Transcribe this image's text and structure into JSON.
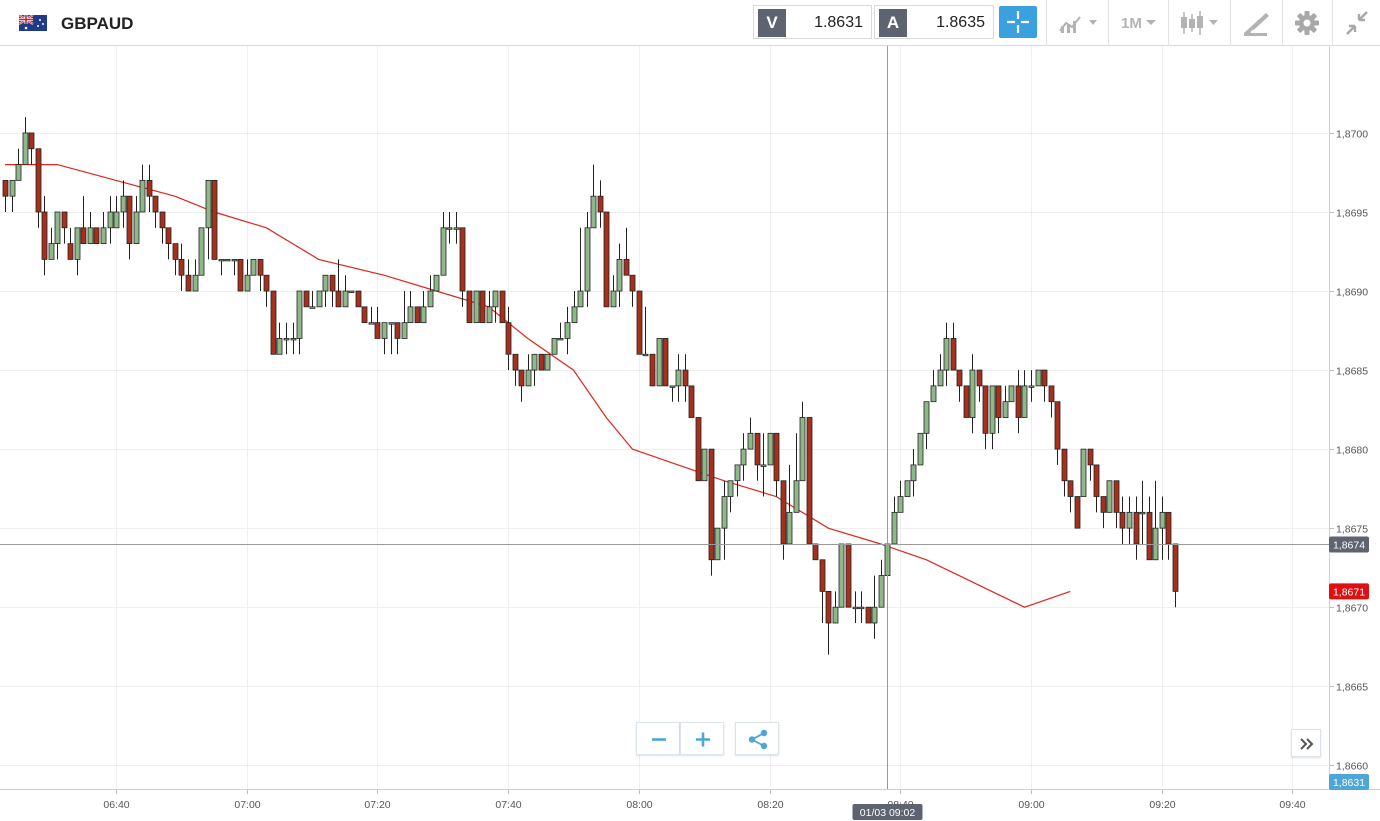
{
  "instrument": {
    "symbol": "GBPAUD",
    "flag_icon": "uk-australia-flag-icon"
  },
  "prices": {
    "sell_label": "V",
    "sell_value": "1.8631",
    "buy_label": "A",
    "buy_value": "1.8635"
  },
  "toolbar": {
    "crosshair_icon": "crosshair-icon",
    "indicators_icon": "indicators-chart-icon",
    "timeframe_label": "1M",
    "chart_type_icon": "candlestick-icon",
    "drawing_icon": "pencil-ruler-icon",
    "settings_icon": "gear-icon",
    "collapse_icon": "collapse-arrows-icon"
  },
  "colors": {
    "bull": "#8fb88a",
    "bear": "#a6301c",
    "ma_line": "#e0261b",
    "accent": "#3aa0e0",
    "last_price_tag": "#e01010",
    "bid_tag": "#4ea6d8",
    "crosshair_tag": "#5e6370"
  },
  "chart_data": {
    "type": "candlestick",
    "timeframe": "1M",
    "x_ticks": [
      "06:40",
      "07:00",
      "07:20",
      "07:40",
      "08:00",
      "08:20",
      "08:40",
      "09:00",
      "09:20",
      "09:40"
    ],
    "y_ticks": [
      "1,8700",
      "1,8695",
      "1,8690",
      "1,8685",
      "1,8680",
      "1,8675",
      "1,8670",
      "1,8665",
      "1,8660"
    ],
    "ylim": [
      1.86585,
      1.87055
    ],
    "grid": true,
    "moving_average_points": [
      [
        0,
        1.8698
      ],
      [
        8,
        1.8698
      ],
      [
        17,
        1.8697
      ],
      [
        26,
        1.8696
      ],
      [
        32,
        1.8695
      ],
      [
        40,
        1.8694
      ],
      [
        48,
        1.8692
      ],
      [
        58,
        1.8691
      ],
      [
        66,
        1.869
      ],
      [
        74,
        1.8689
      ],
      [
        80,
        1.8687
      ],
      [
        87,
        1.8685
      ],
      [
        92,
        1.8682
      ],
      [
        96,
        1.868
      ],
      [
        103,
        1.8679
      ],
      [
        110,
        1.8678
      ],
      [
        118,
        1.8677
      ],
      [
        126,
        1.8675
      ],
      [
        134,
        1.8674
      ],
      [
        141,
        1.8673
      ],
      [
        146,
        1.8672
      ],
      [
        151,
        1.8671
      ],
      [
        156,
        1.867
      ],
      [
        163,
        1.8671
      ]
    ],
    "candles": [
      [
        1.8697,
        1.8696,
        1.8697,
        1.8695
      ],
      [
        1.8696,
        1.8697,
        1.8697,
        1.8695
      ],
      [
        1.8697,
        1.8698,
        1.8699,
        1.8697
      ],
      [
        1.8698,
        1.87,
        1.8701,
        1.8698
      ],
      [
        1.87,
        1.8699,
        1.87,
        1.8698
      ],
      [
        1.8699,
        1.8695,
        1.8699,
        1.8694
      ],
      [
        1.8695,
        1.8692,
        1.8696,
        1.8691
      ],
      [
        1.8692,
        1.8693,
        1.8694,
        1.8692
      ],
      [
        1.8693,
        1.8695,
        1.8695,
        1.8692
      ],
      [
        1.8695,
        1.8694,
        1.8695,
        1.8693
      ],
      [
        1.8693,
        1.8692,
        1.8694,
        1.8692
      ],
      [
        1.8692,
        1.8694,
        1.8694,
        1.8691
      ],
      [
        1.8694,
        1.8693,
        1.8696,
        1.8693
      ],
      [
        1.8693,
        1.8694,
        1.8695,
        1.8693
      ],
      [
        1.8694,
        1.8693,
        1.8694,
        1.8693
      ],
      [
        1.8693,
        1.8694,
        1.8695,
        1.8693
      ],
      [
        1.8694,
        1.8695,
        1.8696,
        1.8693
      ],
      [
        1.8694,
        1.8695,
        1.8696,
        1.8694
      ],
      [
        1.8695,
        1.8696,
        1.8697,
        1.8694
      ],
      [
        1.8696,
        1.8693,
        1.8696,
        1.8692
      ],
      [
        1.8693,
        1.8695,
        1.8696,
        1.8693
      ],
      [
        1.8695,
        1.8697,
        1.8698,
        1.8695
      ],
      [
        1.8697,
        1.8696,
        1.8698,
        1.8695
      ],
      [
        1.8696,
        1.8695,
        1.8696,
        1.8694
      ],
      [
        1.8695,
        1.8694,
        1.8695,
        1.8693
      ],
      [
        1.8694,
        1.8693,
        1.8694,
        1.8692
      ],
      [
        1.8693,
        1.8692,
        1.8693,
        1.8691
      ],
      [
        1.8692,
        1.8691,
        1.8693,
        1.869
      ],
      [
        1.8691,
        1.869,
        1.8692,
        1.869
      ],
      [
        1.869,
        1.8691,
        1.8692,
        1.869
      ],
      [
        1.8691,
        1.8694,
        1.8694,
        1.8691
      ],
      [
        1.8694,
        1.8697,
        1.8697,
        1.8692
      ],
      [
        1.8697,
        1.8692,
        1.8697,
        1.8692
      ],
      [
        1.8692,
        1.8692,
        1.8692,
        1.8691
      ],
      [
        1.8692,
        1.8692,
        1.8692,
        1.8692
      ],
      [
        1.8692,
        1.8692,
        1.8692,
        1.8691
      ],
      [
        1.8692,
        1.869,
        1.8692,
        1.869
      ],
      [
        1.869,
        1.8691,
        1.8692,
        1.869
      ],
      [
        1.8691,
        1.8692,
        1.8692,
        1.8691
      ],
      [
        1.8692,
        1.8691,
        1.8692,
        1.869
      ],
      [
        1.8691,
        1.869,
        1.8691,
        1.8689
      ],
      [
        1.869,
        1.8686,
        1.869,
        1.8686
      ],
      [
        1.8686,
        1.8687,
        1.8688,
        1.8686
      ],
      [
        1.8687,
        1.8687,
        1.8688,
        1.8686
      ],
      [
        1.8687,
        1.8687,
        1.8688,
        1.8686
      ],
      [
        1.8687,
        1.869,
        1.869,
        1.8686
      ],
      [
        1.869,
        1.8689,
        1.869,
        1.8689
      ],
      [
        1.8689,
        1.8689,
        1.869,
        1.8689
      ],
      [
        1.8689,
        1.869,
        1.869,
        1.8689
      ],
      [
        1.869,
        1.8691,
        1.8691,
        1.8689
      ],
      [
        1.8691,
        1.869,
        1.8691,
        1.8689
      ],
      [
        1.869,
        1.8689,
        1.8692,
        1.8689
      ],
      [
        1.8689,
        1.869,
        1.8691,
        1.8689
      ],
      [
        1.869,
        1.869,
        1.869,
        1.869
      ],
      [
        1.869,
        1.8689,
        1.869,
        1.8689
      ],
      [
        1.8689,
        1.8688,
        1.8689,
        1.8688
      ],
      [
        1.8688,
        1.8688,
        1.8689,
        1.8688
      ],
      [
        1.8688,
        1.8687,
        1.8689,
        1.8687
      ],
      [
        1.8687,
        1.8688,
        1.8688,
        1.8686
      ],
      [
        1.8688,
        1.8688,
        1.8688,
        1.8686
      ],
      [
        1.8688,
        1.8687,
        1.8688,
        1.8686
      ],
      [
        1.8687,
        1.8688,
        1.869,
        1.8687
      ],
      [
        1.8688,
        1.8689,
        1.869,
        1.8688
      ],
      [
        1.8689,
        1.8688,
        1.8689,
        1.8688
      ],
      [
        1.8688,
        1.8689,
        1.869,
        1.8688
      ],
      [
        1.8689,
        1.869,
        1.8691,
        1.8689
      ],
      [
        1.869,
        1.8691,
        1.8691,
        1.869
      ],
      [
        1.8691,
        1.8694,
        1.8695,
        1.8691
      ],
      [
        1.8694,
        1.8694,
        1.8695,
        1.8693
      ],
      [
        1.8694,
        1.8694,
        1.8695,
        1.8693
      ],
      [
        1.8694,
        1.869,
        1.8694,
        1.8689
      ],
      [
        1.869,
        1.8688,
        1.869,
        1.8688
      ],
      [
        1.8688,
        1.869,
        1.869,
        1.8688
      ],
      [
        1.869,
        1.8688,
        1.869,
        1.8688
      ],
      [
        1.8688,
        1.8689,
        1.869,
        1.8688
      ],
      [
        1.8689,
        1.869,
        1.869,
        1.8688
      ],
      [
        1.869,
        1.8688,
        1.869,
        1.8688
      ],
      [
        1.8688,
        1.8686,
        1.8689,
        1.8685
      ],
      [
        1.8686,
        1.8685,
        1.8686,
        1.8684
      ],
      [
        1.8685,
        1.8684,
        1.8685,
        1.8683
      ],
      [
        1.8684,
        1.8685,
        1.8686,
        1.8684
      ],
      [
        1.8685,
        1.8686,
        1.8686,
        1.8684
      ],
      [
        1.8686,
        1.8685,
        1.8686,
        1.8685
      ],
      [
        1.8685,
        1.8686,
        1.8686,
        1.8685
      ],
      [
        1.8686,
        1.8687,
        1.8687,
        1.8686
      ],
      [
        1.8687,
        1.8687,
        1.8688,
        1.8687
      ],
      [
        1.8687,
        1.8688,
        1.8689,
        1.8686
      ],
      [
        1.8688,
        1.8689,
        1.869,
        1.8688
      ],
      [
        1.8689,
        1.869,
        1.8694,
        1.8689
      ],
      [
        1.869,
        1.8694,
        1.8695,
        1.8689
      ],
      [
        1.8694,
        1.8696,
        1.8698,
        1.8694
      ],
      [
        1.8696,
        1.8695,
        1.8697,
        1.8694
      ],
      [
        1.8695,
        1.8689,
        1.8695,
        1.8689
      ],
      [
        1.8689,
        1.869,
        1.8691,
        1.8689
      ],
      [
        1.869,
        1.8692,
        1.8693,
        1.8689
      ],
      [
        1.8692,
        1.8691,
        1.8694,
        1.8691
      ],
      [
        1.8691,
        1.869,
        1.8691,
        1.8689
      ],
      [
        1.869,
        1.8686,
        1.869,
        1.8686
      ],
      [
        1.8686,
        1.8686,
        1.8689,
        1.8686
      ],
      [
        1.8686,
        1.8684,
        1.8686,
        1.8684
      ],
      [
        1.8684,
        1.8687,
        1.8687,
        1.8684
      ],
      [
        1.8687,
        1.8684,
        1.8687,
        1.8684
      ],
      [
        1.8684,
        1.8684,
        1.8684,
        1.8683
      ],
      [
        1.8684,
        1.8685,
        1.8686,
        1.8683
      ],
      [
        1.8685,
        1.8684,
        1.8686,
        1.8683
      ],
      [
        1.8684,
        1.8682,
        1.8684,
        1.8682
      ],
      [
        1.8682,
        1.8678,
        1.8682,
        1.8678
      ],
      [
        1.8678,
        1.868,
        1.868,
        1.8678
      ],
      [
        1.868,
        1.8673,
        1.868,
        1.8672
      ],
      [
        1.8673,
        1.8675,
        1.8675,
        1.8673
      ],
      [
        1.8675,
        1.8677,
        1.8678,
        1.8673
      ],
      [
        1.8677,
        1.8678,
        1.8678,
        1.8676
      ],
      [
        1.8678,
        1.8679,
        1.8679,
        1.8677
      ],
      [
        1.8679,
        1.868,
        1.8681,
        1.8678
      ],
      [
        1.868,
        1.8681,
        1.8682,
        1.868
      ],
      [
        1.8681,
        1.8679,
        1.8681,
        1.8678
      ],
      [
        1.8679,
        1.8679,
        1.8681,
        1.8677
      ],
      [
        1.8679,
        1.8681,
        1.8681,
        1.8679
      ],
      [
        1.8681,
        1.8678,
        1.8681,
        1.8677
      ],
      [
        1.8678,
        1.8674,
        1.8678,
        1.8673
      ],
      [
        1.8674,
        1.8676,
        1.8679,
        1.8674
      ],
      [
        1.8676,
        1.8678,
        1.8681,
        1.8676
      ],
      [
        1.8678,
        1.8682,
        1.8683,
        1.8678
      ],
      [
        1.8682,
        1.8674,
        1.8682,
        1.8674
      ],
      [
        1.8674,
        1.8673,
        1.8674,
        1.8673
      ],
      [
        1.8673,
        1.8671,
        1.8673,
        1.8669
      ],
      [
        1.8671,
        1.8669,
        1.8671,
        1.8667
      ],
      [
        1.8669,
        1.867,
        1.8671,
        1.8669
      ],
      [
        1.867,
        1.8674,
        1.8674,
        1.867
      ],
      [
        1.8674,
        1.867,
        1.8674,
        1.867
      ],
      [
        1.867,
        1.867,
        1.8671,
        1.8669
      ],
      [
        1.867,
        1.867,
        1.8671,
        1.8669
      ],
      [
        1.867,
        1.8669,
        1.867,
        1.8669
      ],
      [
        1.8669,
        1.867,
        1.8672,
        1.8668
      ],
      [
        1.867,
        1.8672,
        1.8673,
        1.867
      ],
      [
        1.8672,
        1.8674,
        1.8674,
        1.8672
      ],
      [
        1.8674,
        1.8676,
        1.8677,
        1.8674
      ],
      [
        1.8676,
        1.8677,
        1.8678,
        1.8676
      ],
      [
        1.8677,
        1.8678,
        1.8678,
        1.8677
      ],
      [
        1.8678,
        1.8679,
        1.868,
        1.8677
      ],
      [
        1.8679,
        1.8681,
        1.8681,
        1.8679
      ],
      [
        1.8681,
        1.8683,
        1.8683,
        1.868
      ],
      [
        1.8683,
        1.8684,
        1.8685,
        1.8683
      ],
      [
        1.8684,
        1.8685,
        1.8686,
        1.8684
      ],
      [
        1.8685,
        1.8687,
        1.8688,
        1.8684
      ],
      [
        1.8687,
        1.8685,
        1.8688,
        1.8685
      ],
      [
        1.8685,
        1.8684,
        1.8685,
        1.8683
      ],
      [
        1.8684,
        1.8682,
        1.8684,
        1.8682
      ],
      [
        1.8682,
        1.8685,
        1.8686,
        1.8681
      ],
      [
        1.8685,
        1.8684,
        1.8685,
        1.8683
      ],
      [
        1.8684,
        1.8681,
        1.8684,
        1.868
      ],
      [
        1.8681,
        1.8684,
        1.8684,
        1.868
      ],
      [
        1.8684,
        1.8682,
        1.8684,
        1.8681
      ],
      [
        1.8682,
        1.8683,
        1.8684,
        1.8682
      ],
      [
        1.8683,
        1.8684,
        1.8684,
        1.8683
      ],
      [
        1.8684,
        1.8682,
        1.8685,
        1.8681
      ],
      [
        1.8682,
        1.8684,
        1.8685,
        1.8682
      ],
      [
        1.8684,
        1.8684,
        1.8685,
        1.8683
      ],
      [
        1.8684,
        1.8685,
        1.8685,
        1.8684
      ],
      [
        1.8685,
        1.8684,
        1.8685,
        1.8683
      ],
      [
        1.8684,
        1.8683,
        1.8684,
        1.8682
      ],
      [
        1.8683,
        1.868,
        1.8683,
        1.8679
      ],
      [
        1.868,
        1.8678,
        1.868,
        1.8677
      ],
      [
        1.8678,
        1.8677,
        1.8678,
        1.8676
      ],
      [
        1.8677,
        1.8675,
        1.8677,
        1.8675
      ],
      [
        1.8677,
        1.868,
        1.868,
        1.8677
      ],
      [
        1.868,
        1.8679,
        1.868,
        1.8678
      ],
      [
        1.8679,
        1.8677,
        1.8679,
        1.8676
      ],
      [
        1.8677,
        1.8676,
        1.8677,
        1.8675
      ],
      [
        1.8676,
        1.8678,
        1.8678,
        1.8676
      ],
      [
        1.8678,
        1.8676,
        1.8678,
        1.8675
      ],
      [
        1.8676,
        1.8675,
        1.8677,
        1.8674
      ],
      [
        1.8675,
        1.8676,
        1.8677,
        1.8674
      ],
      [
        1.8676,
        1.8674,
        1.8677,
        1.8673
      ],
      [
        1.8676,
        1.8676,
        1.8678,
        1.8674
      ],
      [
        1.8676,
        1.8673,
        1.8677,
        1.8673
      ],
      [
        1.8673,
        1.8675,
        1.8678,
        1.8673
      ],
      [
        1.8675,
        1.8676,
        1.8677,
        1.8673
      ],
      [
        1.8676,
        1.8674,
        1.8676,
        1.8673
      ],
      [
        1.8674,
        1.8671,
        1.8674,
        1.867
      ]
    ],
    "y_axis_tags": {
      "crosshair_price": "1,8674",
      "last_price": "1,8671",
      "bid_price": "1,8631"
    },
    "crosshair_time_label": "01/03 09:02"
  }
}
